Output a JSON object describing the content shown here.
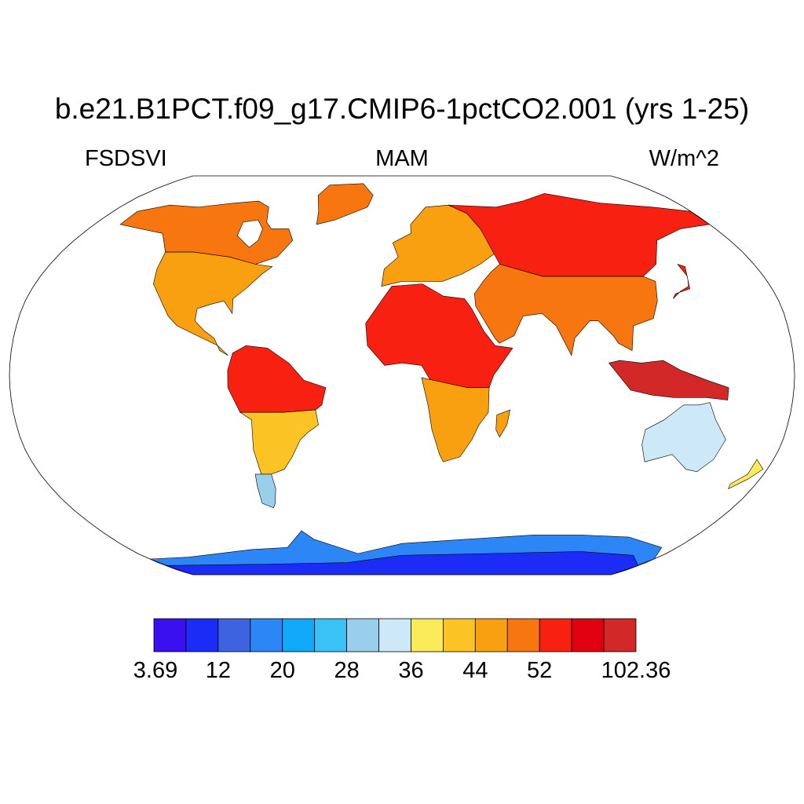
{
  "title": "b.e21.B1PCT.f09_g17.CMIP6-1pctCO2.001 (yrs 1-25)",
  "variable": "FSDSVI",
  "season": "MAM",
  "units": "W/m^2",
  "projection": "robinson",
  "colorbar": {
    "colors": [
      "#3a10f0",
      "#1a2cf5",
      "#3d63e0",
      "#2c86f5",
      "#10a8f8",
      "#38c2f5",
      "#9acfec",
      "#cde8f6",
      "#fbea5a",
      "#fbc424",
      "#f9a010",
      "#f87610",
      "#f82010",
      "#e00010",
      "#d22828"
    ],
    "tick_labels": [
      "3.69",
      "12",
      "20",
      "28",
      "36",
      "44",
      "52",
      "102.36"
    ],
    "tick_boundary_index": [
      0,
      2,
      4,
      6,
      8,
      10,
      12,
      15
    ]
  },
  "regions": [
    {
      "name": "north-america-north",
      "level": 11,
      "lonlat": [
        [
          -165,
          68
        ],
        [
          -150,
          71
        ],
        [
          -130,
          70
        ],
        [
          -110,
          72
        ],
        [
          -95,
          73
        ],
        [
          -85,
          70
        ],
        [
          -80,
          63
        ],
        [
          -75,
          60
        ],
        [
          -65,
          60
        ],
        [
          -60,
          55
        ],
        [
          -65,
          48
        ],
        [
          -75,
          45
        ],
        [
          -90,
          48
        ],
        [
          -110,
          50
        ],
        [
          -125,
          50
        ],
        [
          -135,
          58
        ],
        [
          -150,
          60
        ],
        [
          -165,
          62
        ]
      ]
    },
    {
      "name": "north-america-south",
      "level": 10,
      "lonlat": [
        [
          -125,
          50
        ],
        [
          -110,
          50
        ],
        [
          -90,
          48
        ],
        [
          -75,
          45
        ],
        [
          -66,
          44
        ],
        [
          -70,
          41
        ],
        [
          -76,
          35
        ],
        [
          -81,
          31
        ],
        [
          -80,
          25
        ],
        [
          -82,
          27
        ],
        [
          -85,
          30
        ],
        [
          -90,
          29
        ],
        [
          -97,
          27
        ],
        [
          -97,
          22
        ],
        [
          -92,
          18
        ],
        [
          -87,
          15
        ],
        [
          -84,
          10
        ],
        [
          -80,
          8
        ],
        [
          -85,
          12
        ],
        [
          -95,
          16
        ],
        [
          -105,
          20
        ],
        [
          -110,
          24
        ],
        [
          -115,
          30
        ],
        [
          -122,
          37
        ],
        [
          -124,
          43
        ]
      ]
    },
    {
      "name": "greenland",
      "level": 11,
      "lonlat": [
        [
          -55,
          82
        ],
        [
          -30,
          83
        ],
        [
          -20,
          76
        ],
        [
          -22,
          70
        ],
        [
          -40,
          64
        ],
        [
          -50,
          62
        ],
        [
          -52,
          68
        ],
        [
          -58,
          76
        ]
      ]
    },
    {
      "name": "hudson-bay",
      "level": -1,
      "lonlat": [
        [
          -94,
          63
        ],
        [
          -86,
          64
        ],
        [
          -80,
          60
        ],
        [
          -79,
          55
        ],
        [
          -82,
          52
        ],
        [
          -92,
          57
        ]
      ]
    },
    {
      "name": "south-america-north",
      "level": 12,
      "lonlat": [
        [
          -78,
          9
        ],
        [
          -72,
          12
        ],
        [
          -62,
          11
        ],
        [
          -52,
          5
        ],
        [
          -45,
          -2
        ],
        [
          -35,
          -5
        ],
        [
          -37,
          -12
        ],
        [
          -40,
          -14
        ],
        [
          -55,
          -15
        ],
        [
          -65,
          -15
        ],
        [
          -75,
          -15
        ],
        [
          -80,
          -5
        ],
        [
          -80,
          2
        ]
      ]
    },
    {
      "name": "south-america-mid",
      "level": 9,
      "lonlat": [
        [
          -75,
          -15
        ],
        [
          -65,
          -15
        ],
        [
          -55,
          -15
        ],
        [
          -40,
          -14
        ],
        [
          -39,
          -20
        ],
        [
          -44,
          -23
        ],
        [
          -48,
          -26
        ],
        [
          -53,
          -33
        ],
        [
          -58,
          -38
        ],
        [
          -65,
          -40
        ],
        [
          -70,
          -40
        ],
        [
          -71,
          -30
        ],
        [
          -70,
          -18
        ]
      ]
    },
    {
      "name": "south-america-south",
      "level": 6,
      "lonlat": [
        [
          -70,
          -40
        ],
        [
          -65,
          -40
        ],
        [
          -65,
          -46
        ],
        [
          -68,
          -52
        ],
        [
          -70,
          -54
        ],
        [
          -75,
          -52
        ],
        [
          -74,
          -45
        ],
        [
          -73,
          -40
        ]
      ]
    },
    {
      "name": "africa-north",
      "level": 12,
      "lonlat": [
        [
          -17,
          21
        ],
        [
          -10,
          30
        ],
        [
          -5,
          36
        ],
        [
          10,
          37
        ],
        [
          20,
          32
        ],
        [
          30,
          31
        ],
        [
          33,
          27
        ],
        [
          38,
          18
        ],
        [
          43,
          12
        ],
        [
          51,
          11
        ],
        [
          42,
          0
        ],
        [
          40,
          -5
        ],
        [
          30,
          -5
        ],
        [
          15,
          -5
        ],
        [
          9,
          4
        ],
        [
          0,
          5
        ],
        [
          -8,
          4
        ],
        [
          -16,
          12
        ]
      ]
    },
    {
      "name": "africa-south",
      "level": 10,
      "lonlat": [
        [
          9,
          -1
        ],
        [
          30,
          -5
        ],
        [
          40,
          -5
        ],
        [
          40,
          -15
        ],
        [
          36,
          -20
        ],
        [
          33,
          -26
        ],
        [
          28,
          -33
        ],
        [
          20,
          -35
        ],
        [
          18,
          -32
        ],
        [
          14,
          -22
        ],
        [
          12,
          -12
        ]
      ]
    },
    {
      "name": "madagascar",
      "level": 10,
      "lonlat": [
        [
          44,
          -16
        ],
        [
          50,
          -14
        ],
        [
          49,
          -20
        ],
        [
          46,
          -25
        ],
        [
          44,
          -22
        ]
      ]
    },
    {
      "name": "europe",
      "level": 10,
      "lonlat": [
        [
          -10,
          36
        ],
        [
          -9,
          43
        ],
        [
          -2,
          48
        ],
        [
          -5,
          54
        ],
        [
          5,
          58
        ],
        [
          5,
          62
        ],
        [
          15,
          70
        ],
        [
          30,
          71
        ],
        [
          40,
          67
        ],
        [
          45,
          60
        ],
        [
          50,
          50
        ],
        [
          40,
          45
        ],
        [
          30,
          41
        ],
        [
          20,
          38
        ],
        [
          10,
          38
        ],
        [
          0,
          38
        ]
      ]
    },
    {
      "name": "asia-north",
      "level": 12,
      "lonlat": [
        [
          30,
          71
        ],
        [
          60,
          70
        ],
        [
          80,
          73
        ],
        [
          100,
          77
        ],
        [
          130,
          72
        ],
        [
          160,
          70
        ],
        [
          180,
          68
        ],
        [
          180,
          62
        ],
        [
          160,
          60
        ],
        [
          140,
          55
        ],
        [
          130,
          45
        ],
        [
          120,
          40
        ],
        [
          100,
          40
        ],
        [
          70,
          40
        ],
        [
          50,
          45
        ],
        [
          45,
          60
        ],
        [
          40,
          67
        ]
      ]
    },
    {
      "name": "asia-south",
      "level": 11,
      "lonlat": [
        [
          50,
          45
        ],
        [
          70,
          40
        ],
        [
          100,
          40
        ],
        [
          120,
          40
        ],
        [
          125,
          38
        ],
        [
          122,
          30
        ],
        [
          118,
          23
        ],
        [
          108,
          20
        ],
        [
          106,
          10
        ],
        [
          100,
          13
        ],
        [
          98,
          16
        ],
        [
          92,
          22
        ],
        [
          88,
          22
        ],
        [
          80,
          15
        ],
        [
          78,
          8
        ],
        [
          72,
          20
        ],
        [
          66,
          25
        ],
        [
          57,
          24
        ],
        [
          52,
          16
        ],
        [
          45,
          13
        ],
        [
          43,
          15
        ],
        [
          35,
          28
        ],
        [
          35,
          33
        ],
        [
          40,
          38
        ],
        [
          45,
          42
        ]
      ]
    },
    {
      "name": "japan",
      "level": 12,
      "lonlat": [
        [
          130,
          31
        ],
        [
          135,
          34
        ],
        [
          140,
          36
        ],
        [
          142,
          40
        ],
        [
          141,
          45
        ],
        [
          144,
          44
        ],
        [
          140,
          35
        ],
        [
          132,
          33
        ]
      ]
    },
    {
      "name": "southeast-asia-islands",
      "level": 14,
      "lonlat": [
        [
          95,
          5
        ],
        [
          105,
          -6
        ],
        [
          115,
          -8
        ],
        [
          125,
          -9
        ],
        [
          140,
          -9
        ],
        [
          150,
          -10
        ],
        [
          150,
          -5
        ],
        [
          140,
          -2
        ],
        [
          128,
          2
        ],
        [
          120,
          6
        ],
        [
          110,
          5
        ],
        [
          100,
          6
        ]
      ]
    },
    {
      "name": "australia",
      "level": 7,
      "lonlat": [
        [
          114,
          -22
        ],
        [
          122,
          -18
        ],
        [
          130,
          -12
        ],
        [
          137,
          -12
        ],
        [
          142,
          -11
        ],
        [
          146,
          -18
        ],
        [
          153,
          -26
        ],
        [
          151,
          -34
        ],
        [
          146,
          -39
        ],
        [
          140,
          -38
        ],
        [
          130,
          -32
        ],
        [
          118,
          -35
        ],
        [
          114,
          -28
        ]
      ]
    },
    {
      "name": "new-zealand",
      "level": 8,
      "lonlat": [
        [
          172,
          -34
        ],
        [
          178,
          -38
        ],
        [
          174,
          -42
        ],
        [
          168,
          -46
        ],
        [
          167,
          -44
        ],
        [
          172,
          -40
        ]
      ]
    },
    {
      "name": "antarctica-coast",
      "level": 3,
      "lonlat": [
        [
          -180,
          -90
        ],
        [
          -180,
          -78
        ],
        [
          -150,
          -77
        ],
        [
          -100,
          -73
        ],
        [
          -75,
          -72
        ],
        [
          -60,
          -64
        ],
        [
          -55,
          -68
        ],
        [
          -30,
          -75
        ],
        [
          0,
          -70
        ],
        [
          40,
          -68
        ],
        [
          80,
          -66
        ],
        [
          110,
          -66
        ],
        [
          140,
          -67
        ],
        [
          170,
          -72
        ],
        [
          180,
          -78
        ],
        [
          180,
          -90
        ]
      ]
    },
    {
      "name": "antarctica-interior",
      "level": 1,
      "lonlat": [
        [
          -180,
          -90
        ],
        [
          -180,
          -82
        ],
        [
          -100,
          -81
        ],
        [
          -40,
          -80
        ],
        [
          0,
          -76
        ],
        [
          60,
          -75
        ],
        [
          120,
          -74
        ],
        [
          160,
          -76
        ],
        [
          180,
          -82
        ],
        [
          180,
          -90
        ]
      ]
    }
  ]
}
